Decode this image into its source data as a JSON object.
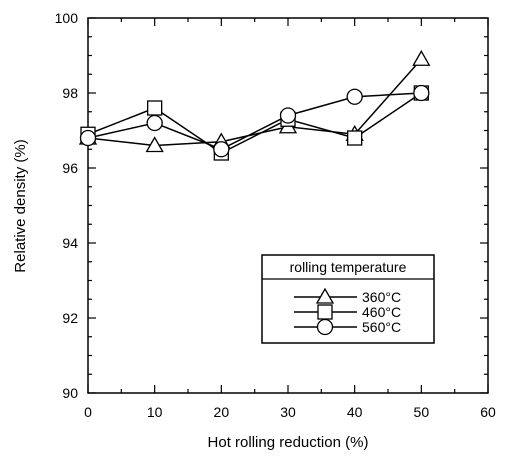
{
  "chart_data": {
    "type": "line",
    "title": "",
    "xlabel": "Hot rolling reduction (%)",
    "ylabel": "Relative density (%)",
    "xlim": [
      0,
      60
    ],
    "ylim": [
      90,
      100
    ],
    "x_ticks": [
      0,
      10,
      20,
      30,
      40,
      50,
      60
    ],
    "y_ticks": [
      90,
      92,
      94,
      96,
      98,
      100
    ],
    "grid": false,
    "legend": {
      "title": "rolling temperature",
      "placement": "lower-right"
    },
    "x": [
      0,
      10,
      20,
      30,
      40,
      50
    ],
    "series": [
      {
        "name": "360°C",
        "marker": "triangle",
        "values": [
          96.8,
          96.6,
          96.7,
          97.1,
          96.9,
          98.9
        ]
      },
      {
        "name": "460°C",
        "marker": "square",
        "values": [
          96.9,
          97.6,
          96.4,
          97.3,
          96.8,
          98.0
        ]
      },
      {
        "name": "560°C",
        "marker": "circle",
        "values": [
          96.8,
          97.2,
          96.5,
          97.4,
          97.9,
          98.0
        ]
      }
    ],
    "colors": {
      "line": "#000000",
      "marker_fill": "#ffffff",
      "background": "#ffffff"
    }
  }
}
